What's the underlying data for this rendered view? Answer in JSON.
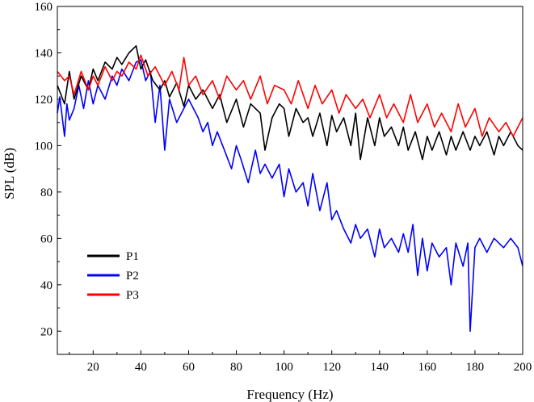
{
  "chart_data": {
    "type": "line",
    "title": "",
    "xlabel": "Frequency (Hz)",
    "ylabel": "SPL (dB)",
    "xlim": [
      5,
      200
    ],
    "ylim": [
      10,
      160
    ],
    "xticks": [
      20,
      40,
      60,
      80,
      100,
      120,
      140,
      160,
      180,
      200
    ],
    "xtick_labels": [
      "20",
      "40",
      "60",
      "80",
      "100",
      "120",
      "140",
      "160",
      "180",
      "200"
    ],
    "yticks": [
      20,
      40,
      60,
      80,
      100,
      120,
      140,
      160
    ],
    "ytick_labels": [
      "20",
      "40",
      "60",
      "80",
      "100",
      "120",
      "140",
      "160"
    ],
    "legend": {
      "placement": "lower-left"
    },
    "series": [
      {
        "name": "P1",
        "color": "#000000",
        "x": [
          5,
          8,
          10,
          12,
          15,
          18,
          20,
          22,
          25,
          28,
          30,
          32,
          35,
          38,
          40,
          42,
          45,
          48,
          50,
          52,
          55,
          58,
          60,
          63,
          66,
          70,
          73,
          76,
          80,
          83,
          86,
          90,
          92,
          95,
          98,
          100,
          102,
          105,
          108,
          110,
          112,
          115,
          118,
          120,
          122,
          125,
          128,
          130,
          132,
          135,
          138,
          140,
          142,
          145,
          148,
          150,
          152,
          155,
          158,
          160,
          162,
          165,
          168,
          170,
          172,
          175,
          178,
          180,
          182,
          185,
          188,
          190,
          192,
          195,
          198,
          200
        ],
        "values": [
          126,
          118,
          132,
          120,
          130,
          124,
          133,
          128,
          136,
          133,
          138,
          135,
          140,
          143,
          133,
          137,
          128,
          124,
          128,
          121,
          127,
          117,
          126,
          120,
          124,
          116,
          122,
          110,
          120,
          108,
          118,
          114,
          98,
          112,
          118,
          116,
          104,
          116,
          110,
          112,
          104,
          114,
          100,
          113,
          106,
          112,
          100,
          114,
          94,
          112,
          100,
          112,
          104,
          108,
          100,
          108,
          98,
          106,
          94,
          104,
          98,
          106,
          96,
          104,
          98,
          106,
          98,
          104,
          100,
          106,
          96,
          104,
          100,
          106,
          100,
          98
        ]
      },
      {
        "name": "P2",
        "color": "#0000ff",
        "x": [
          5,
          6,
          8,
          9,
          10,
          12,
          14,
          16,
          18,
          20,
          22,
          25,
          28,
          30,
          32,
          35,
          38,
          40,
          42,
          44,
          46,
          48,
          50,
          52,
          55,
          58,
          60,
          62,
          64,
          66,
          68,
          70,
          72,
          75,
          78,
          80,
          82,
          85,
          88,
          90,
          92,
          95,
          98,
          100,
          102,
          105,
          108,
          110,
          112,
          115,
          118,
          120,
          122,
          125,
          128,
          130,
          132,
          135,
          138,
          140,
          142,
          145,
          148,
          150,
          152,
          154,
          156,
          158,
          160,
          162,
          165,
          168,
          170,
          172,
          175,
          177,
          178,
          180,
          182,
          185,
          188,
          190,
          192,
          195,
          198,
          200
        ],
        "values": [
          114,
          121,
          104,
          118,
          111,
          116,
          126,
          116,
          128,
          118,
          126,
          120,
          130,
          126,
          133,
          128,
          136,
          137,
          128,
          132,
          110,
          126,
          98,
          120,
          110,
          116,
          120,
          116,
          112,
          106,
          110,
          100,
          106,
          98,
          90,
          100,
          94,
          84,
          98,
          88,
          92,
          86,
          92,
          78,
          90,
          80,
          84,
          74,
          88,
          72,
          84,
          68,
          72,
          64,
          58,
          66,
          60,
          64,
          52,
          64,
          56,
          60,
          54,
          62,
          54,
          66,
          44,
          60,
          46,
          58,
          52,
          56,
          40,
          58,
          48,
          58,
          20,
          56,
          60,
          54,
          60,
          58,
          56,
          60,
          56,
          48
        ]
      },
      {
        "name": "P3",
        "color": "#ff0000",
        "x": [
          5,
          8,
          10,
          12,
          15,
          18,
          20,
          22,
          25,
          28,
          30,
          32,
          35,
          38,
          40,
          43,
          46,
          50,
          53,
          56,
          58,
          60,
          63,
          66,
          70,
          73,
          76,
          80,
          83,
          86,
          90,
          93,
          96,
          100,
          103,
          106,
          110,
          113,
          116,
          120,
          123,
          126,
          130,
          133,
          136,
          140,
          143,
          146,
          150,
          153,
          156,
          160,
          163,
          166,
          170,
          173,
          176,
          180,
          183,
          186,
          190,
          193,
          196,
          200
        ],
        "values": [
          132,
          128,
          130,
          122,
          132,
          124,
          130,
          126,
          134,
          128,
          132,
          130,
          136,
          133,
          139,
          130,
          134,
          126,
          132,
          124,
          138,
          126,
          130,
          122,
          128,
          120,
          130,
          124,
          128,
          120,
          130,
          118,
          126,
          124,
          118,
          128,
          116,
          126,
          118,
          124,
          114,
          122,
          116,
          120,
          112,
          122,
          112,
          118,
          110,
          122,
          110,
          118,
          108,
          114,
          106,
          118,
          108,
          116,
          104,
          112,
          106,
          110,
          104,
          112
        ]
      }
    ]
  }
}
